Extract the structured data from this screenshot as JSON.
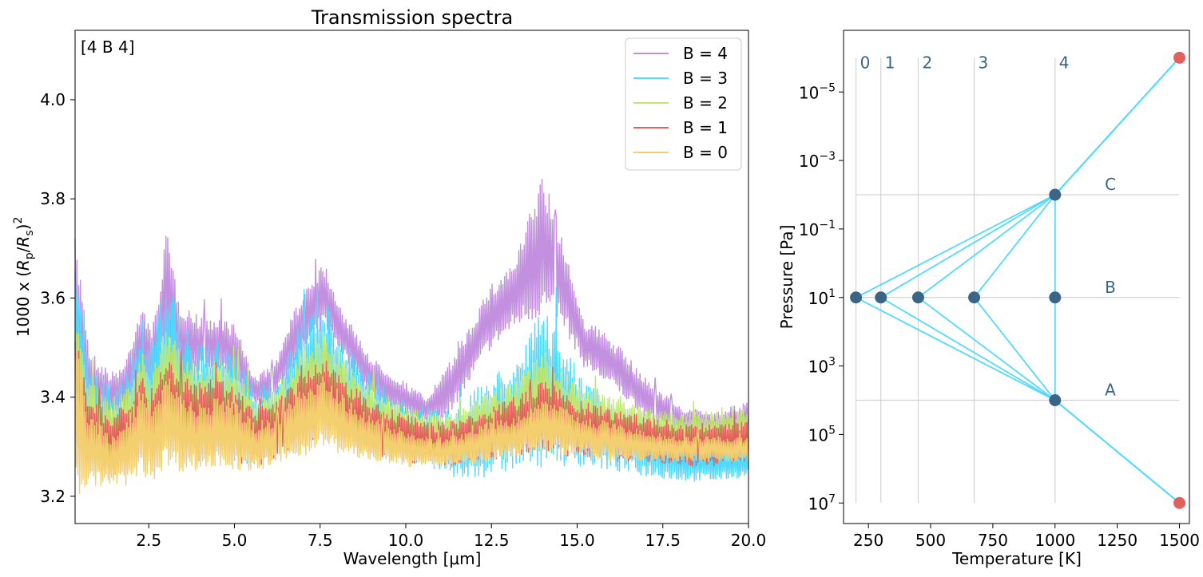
{
  "chart_data": [
    {
      "type": "line",
      "title": "Transmission spectra",
      "xlabel": "Wavelength [μm]",
      "ylabel_prefix": "1000 x (",
      "ylabel_rp": "R",
      "ylabel_rp_sub": "p",
      "ylabel_slash": "/",
      "ylabel_rs": "R",
      "ylabel_rs_sub": "s",
      "ylabel_suffix": ")",
      "ylabel_sup": "2",
      "annotation": "[4 B 4]",
      "xlim": [
        0.35,
        20.0
      ],
      "ylim": [
        3.145,
        4.14
      ],
      "xticks": [
        2.5,
        5.0,
        7.5,
        10.0,
        12.5,
        15.0,
        17.5,
        20.0
      ],
      "xtick_labels": [
        "2.5",
        "5.0",
        "7.5",
        "10.0",
        "12.5",
        "15.0",
        "17.5",
        "20.0"
      ],
      "yticks": [
        3.2,
        3.4,
        3.6,
        3.8,
        4.0
      ],
      "ytick_labels": [
        "3.2",
        "3.4",
        "3.6",
        "3.8",
        "4.0"
      ],
      "legend_position": "top-right",
      "series": [
        {
          "name": "B = 4",
          "color": "#c290df",
          "x": [
            0.35,
            0.6,
            0.75,
            1.0,
            1.4,
            1.8,
            2.3,
            2.6,
            3.0,
            3.4,
            4.0,
            4.6,
            5.0,
            5.6,
            6.2,
            7.0,
            7.6,
            8.2,
            9.0,
            9.8,
            10.6,
            11.2,
            11.8,
            12.4,
            13.2,
            14.0,
            14.6,
            15.2,
            16.0,
            17.0,
            18.0,
            19.0,
            20.0
          ],
          "upper": [
            3.72,
            3.62,
            3.5,
            3.48,
            3.45,
            3.47,
            3.6,
            3.52,
            3.74,
            3.6,
            3.56,
            3.56,
            3.55,
            3.44,
            3.47,
            3.62,
            3.68,
            3.57,
            3.48,
            3.44,
            3.4,
            3.46,
            3.54,
            3.62,
            3.68,
            3.86,
            3.72,
            3.56,
            3.52,
            3.44,
            3.38,
            3.37,
            3.39
          ],
          "lower": [
            3.38,
            3.4,
            3.38,
            3.36,
            3.36,
            3.37,
            3.44,
            3.4,
            3.5,
            3.44,
            3.45,
            3.45,
            3.42,
            3.38,
            3.4,
            3.49,
            3.54,
            3.48,
            3.4,
            3.37,
            3.35,
            3.36,
            3.42,
            3.49,
            3.54,
            3.56,
            3.54,
            3.46,
            3.42,
            3.36,
            3.33,
            3.32,
            3.33
          ]
        },
        {
          "name": "B = 3",
          "color": "#51dafe",
          "x": [
            0.35,
            0.6,
            0.75,
            1.0,
            1.4,
            1.8,
            2.3,
            2.6,
            3.0,
            3.4,
            4.0,
            4.6,
            5.0,
            5.6,
            6.2,
            7.0,
            7.6,
            8.2,
            9.0,
            9.8,
            10.6,
            11.2,
            11.8,
            12.4,
            13.2,
            14.0,
            14.6,
            15.2,
            16.0,
            17.0,
            18.0,
            19.0,
            20.0
          ],
          "upper": [
            3.66,
            3.58,
            3.46,
            3.45,
            3.42,
            3.44,
            3.56,
            3.5,
            3.66,
            3.56,
            3.5,
            3.52,
            3.5,
            3.42,
            3.44,
            3.56,
            3.6,
            3.52,
            3.44,
            3.4,
            3.38,
            3.38,
            3.4,
            3.44,
            3.48,
            3.58,
            3.5,
            3.44,
            3.4,
            3.36,
            3.32,
            3.3,
            3.3
          ],
          "lower": [
            3.26,
            3.26,
            3.25,
            3.24,
            3.24,
            3.25,
            3.28,
            3.27,
            3.3,
            3.28,
            3.27,
            3.28,
            3.27,
            3.26,
            3.27,
            3.3,
            3.32,
            3.3,
            3.28,
            3.27,
            3.26,
            3.24,
            3.23,
            3.24,
            3.25,
            3.26,
            3.26,
            3.26,
            3.25,
            3.24,
            3.23,
            3.23,
            3.24
          ]
        },
        {
          "name": "B = 2",
          "color": "#bfe873",
          "x": [
            0.35,
            0.6,
            0.75,
            1.0,
            1.4,
            1.8,
            2.3,
            2.6,
            3.0,
            3.4,
            4.0,
            4.6,
            5.0,
            5.6,
            6.2,
            7.0,
            7.6,
            8.2,
            9.0,
            9.8,
            10.6,
            11.2,
            11.8,
            12.4,
            13.2,
            14.0,
            14.6,
            15.2,
            16.0,
            17.0,
            18.0,
            19.0,
            20.0
          ],
          "upper": [
            3.6,
            3.52,
            3.44,
            3.42,
            3.4,
            3.42,
            3.5,
            3.45,
            3.56,
            3.5,
            3.47,
            3.48,
            3.46,
            3.4,
            3.42,
            3.5,
            3.54,
            3.48,
            3.42,
            3.39,
            3.37,
            3.37,
            3.38,
            3.41,
            3.43,
            3.5,
            3.45,
            3.42,
            3.4,
            3.38,
            3.37,
            3.37,
            3.38
          ],
          "lower": [
            3.28,
            3.28,
            3.27,
            3.26,
            3.26,
            3.27,
            3.3,
            3.28,
            3.32,
            3.3,
            3.29,
            3.3,
            3.29,
            3.28,
            3.29,
            3.32,
            3.34,
            3.32,
            3.3,
            3.29,
            3.28,
            3.28,
            3.28,
            3.29,
            3.3,
            3.31,
            3.3,
            3.3,
            3.29,
            3.29,
            3.28,
            3.28,
            3.29
          ]
        },
        {
          "name": "B = 1",
          "color": "#e2615c",
          "x": [
            0.35,
            0.6,
            0.75,
            1.0,
            1.4,
            1.8,
            2.3,
            2.6,
            3.0,
            3.4,
            4.0,
            4.6,
            5.0,
            5.6,
            6.2,
            7.0,
            7.6,
            8.2,
            9.0,
            9.8,
            10.6,
            11.2,
            11.8,
            12.4,
            13.2,
            14.0,
            14.6,
            15.2,
            16.0,
            17.0,
            18.0,
            19.0,
            20.0
          ],
          "upper": [
            3.54,
            3.48,
            3.4,
            3.39,
            3.37,
            3.39,
            3.45,
            3.41,
            3.5,
            3.45,
            3.43,
            3.44,
            3.42,
            3.38,
            3.39,
            3.45,
            3.48,
            3.44,
            3.39,
            3.37,
            3.35,
            3.35,
            3.36,
            3.38,
            3.4,
            3.44,
            3.41,
            3.39,
            3.38,
            3.36,
            3.35,
            3.35,
            3.35
          ],
          "lower": [
            3.25,
            3.26,
            3.25,
            3.24,
            3.24,
            3.25,
            3.28,
            3.27,
            3.3,
            3.28,
            3.27,
            3.28,
            3.27,
            3.26,
            3.27,
            3.3,
            3.32,
            3.3,
            3.28,
            3.27,
            3.26,
            3.26,
            3.26,
            3.27,
            3.28,
            3.29,
            3.28,
            3.28,
            3.27,
            3.27,
            3.26,
            3.26,
            3.27
          ]
        },
        {
          "name": "B = 0",
          "color": "#f4cf6f",
          "x": [
            0.35,
            0.6,
            0.75,
            1.0,
            1.4,
            1.8,
            2.3,
            2.6,
            3.0,
            3.4,
            4.0,
            4.6,
            5.0,
            5.6,
            6.2,
            7.0,
            7.6,
            8.2,
            9.0,
            9.8,
            10.6,
            11.2,
            11.8,
            12.4,
            13.2,
            14.0,
            14.6,
            15.2,
            16.0,
            17.0,
            18.0,
            19.0,
            20.0
          ],
          "upper": [
            3.5,
            3.45,
            3.36,
            3.35,
            3.33,
            3.35,
            3.42,
            3.38,
            3.46,
            3.41,
            3.39,
            3.4,
            3.39,
            3.35,
            3.36,
            3.42,
            3.45,
            3.4,
            3.36,
            3.34,
            3.32,
            3.32,
            3.33,
            3.35,
            3.36,
            3.4,
            3.38,
            3.36,
            3.35,
            3.33,
            3.32,
            3.32,
            3.32
          ],
          "lower": [
            3.19,
            3.21,
            3.22,
            3.22,
            3.22,
            3.22,
            3.24,
            3.23,
            3.26,
            3.25,
            3.25,
            3.26,
            3.25,
            3.25,
            3.26,
            3.28,
            3.3,
            3.28,
            3.27,
            3.26,
            3.26,
            3.26,
            3.26,
            3.27,
            3.28,
            3.29,
            3.28,
            3.28,
            3.27,
            3.27,
            3.27,
            3.27,
            3.27
          ]
        }
      ]
    },
    {
      "type": "line",
      "title": "",
      "xlabel": "Temperature [K]",
      "ylabel": "Pressure [Pa]",
      "xlim": [
        150,
        1540
      ],
      "yscale": "log",
      "ylim_exp": [
        -6.8,
        7.6
      ],
      "xticks": [
        250,
        500,
        750,
        1000,
        1250,
        1500
      ],
      "xtick_labels": [
        "250",
        "500",
        "750",
        "1000",
        "1250",
        "1500"
      ],
      "yticks_exp": [
        -5,
        -3,
        -1,
        1,
        3,
        5,
        7
      ],
      "ytick_base": "10",
      "ytick_exponents": [
        "−5",
        "−3",
        "−1",
        "1",
        "3",
        "5",
        "7"
      ],
      "line_color": "#51dafe",
      "guide_color": "#d3d3d3",
      "node_color": "#3b6587",
      "endpoint_color": "#e2615c",
      "label_color": "#3b6587",
      "vertical_guides": [
        {
          "label": "0",
          "temperature": 200
        },
        {
          "label": "1",
          "temperature": 300
        },
        {
          "label": "2",
          "temperature": 450
        },
        {
          "label": "3",
          "temperature": 675
        },
        {
          "label": "4",
          "temperature": 1000
        }
      ],
      "horizontal_guides": [
        {
          "label": "C",
          "pressure_exp": -2
        },
        {
          "label": "B",
          "pressure_exp": 1
        },
        {
          "label": "A",
          "pressure_exp": 4
        }
      ],
      "nodes": [
        {
          "temperature": 1000,
          "pressure_exp": -2
        },
        {
          "temperature": 200,
          "pressure_exp": 1
        },
        {
          "temperature": 300,
          "pressure_exp": 1
        },
        {
          "temperature": 450,
          "pressure_exp": 1
        },
        {
          "temperature": 675,
          "pressure_exp": 1
        },
        {
          "temperature": 1000,
          "pressure_exp": 1
        },
        {
          "temperature": 1000,
          "pressure_exp": 4
        }
      ],
      "endpoints": [
        {
          "temperature": 1500,
          "pressure_exp": -6
        },
        {
          "temperature": 1500,
          "pressure_exp": 7
        }
      ],
      "profiles": [
        {
          "T": [
            1500,
            1000,
            200,
            1000,
            1500
          ],
          "P_exp": [
            -6,
            -2,
            1,
            4,
            7
          ]
        },
        {
          "T": [
            1500,
            1000,
            300,
            1000,
            1500
          ],
          "P_exp": [
            -6,
            -2,
            1,
            4,
            7
          ]
        },
        {
          "T": [
            1500,
            1000,
            450,
            1000,
            1500
          ],
          "P_exp": [
            -6,
            -2,
            1,
            4,
            7
          ]
        },
        {
          "T": [
            1500,
            1000,
            675,
            1000,
            1500
          ],
          "P_exp": [
            -6,
            -2,
            1,
            4,
            7
          ]
        },
        {
          "T": [
            1500,
            1000,
            1000,
            1000,
            1500
          ],
          "P_exp": [
            -6,
            -2,
            1,
            4,
            7
          ]
        }
      ]
    }
  ]
}
